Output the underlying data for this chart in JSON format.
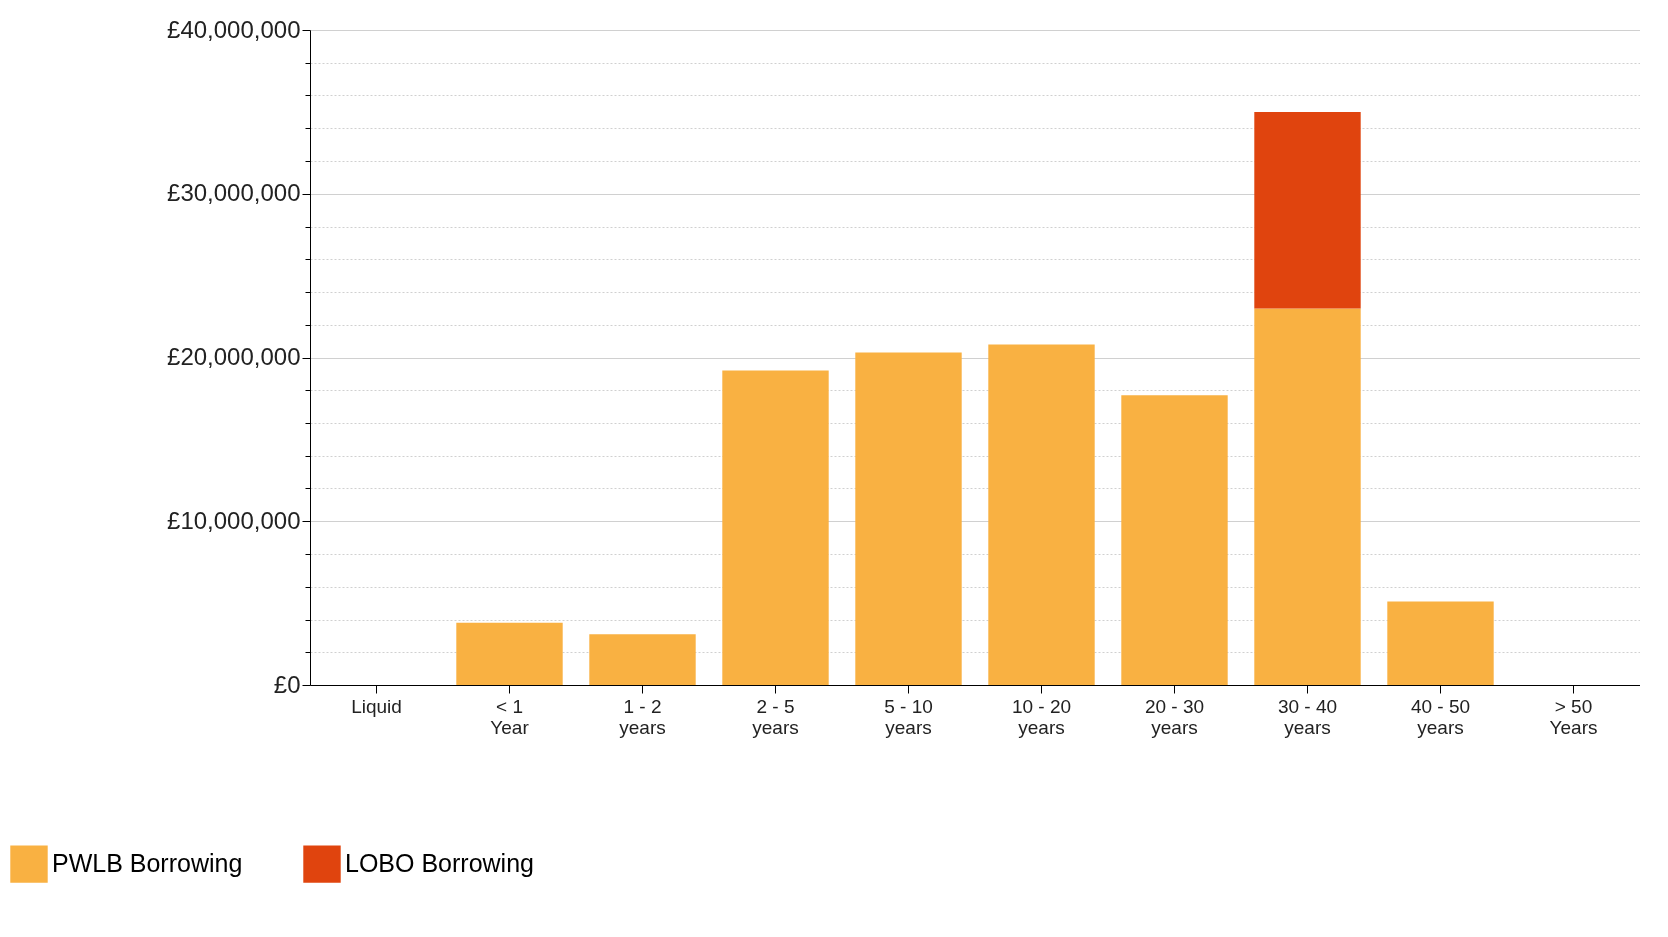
{
  "chart_data": {
    "type": "bar",
    "stacked": true,
    "categories": [
      "Liquid",
      "< 1 Year",
      "1 - 2 years",
      "2 - 5 years",
      "5 - 10 years",
      "10 - 20 years",
      "20 - 30 years",
      "30 - 40 years",
      "40 - 50 years",
      "> 50 Years"
    ],
    "series": [
      {
        "name": "PWLB Borrowing",
        "color": "#f9b142",
        "values": [
          0,
          3800000,
          3100000,
          19200000,
          20300000,
          20800000,
          17700000,
          23000000,
          5100000,
          0
        ]
      },
      {
        "name": "LOBO Borrowing",
        "color": "#e0440e",
        "values": [
          0,
          0,
          0,
          0,
          0,
          0,
          0,
          12000000,
          0,
          0
        ]
      }
    ],
    "ylim": [
      0,
      40000000
    ],
    "yticks": [
      {
        "value": 0,
        "label": "£0"
      },
      {
        "value": 2000000,
        "label": null
      },
      {
        "value": 4000000,
        "label": null
      },
      {
        "value": 6000000,
        "label": null
      },
      {
        "value": 8000000,
        "label": null
      },
      {
        "value": 10000000,
        "label": "£10,000,000"
      },
      {
        "value": 12000000,
        "label": null
      },
      {
        "value": 14000000,
        "label": null
      },
      {
        "value": 16000000,
        "label": null
      },
      {
        "value": 18000000,
        "label": null
      },
      {
        "value": 20000000,
        "label": "£20,000,000"
      },
      {
        "value": 22000000,
        "label": null
      },
      {
        "value": 24000000,
        "label": null
      },
      {
        "value": 26000000,
        "label": null
      },
      {
        "value": 28000000,
        "label": null
      },
      {
        "value": 30000000,
        "label": "£30,000,000"
      },
      {
        "value": 32000000,
        "label": null
      },
      {
        "value": 34000000,
        "label": null
      },
      {
        "value": 36000000,
        "label": null
      },
      {
        "value": 38000000,
        "label": null
      },
      {
        "value": 40000000,
        "label": "£40,000,000"
      }
    ],
    "grid": "y",
    "legend": "bottom left"
  }
}
